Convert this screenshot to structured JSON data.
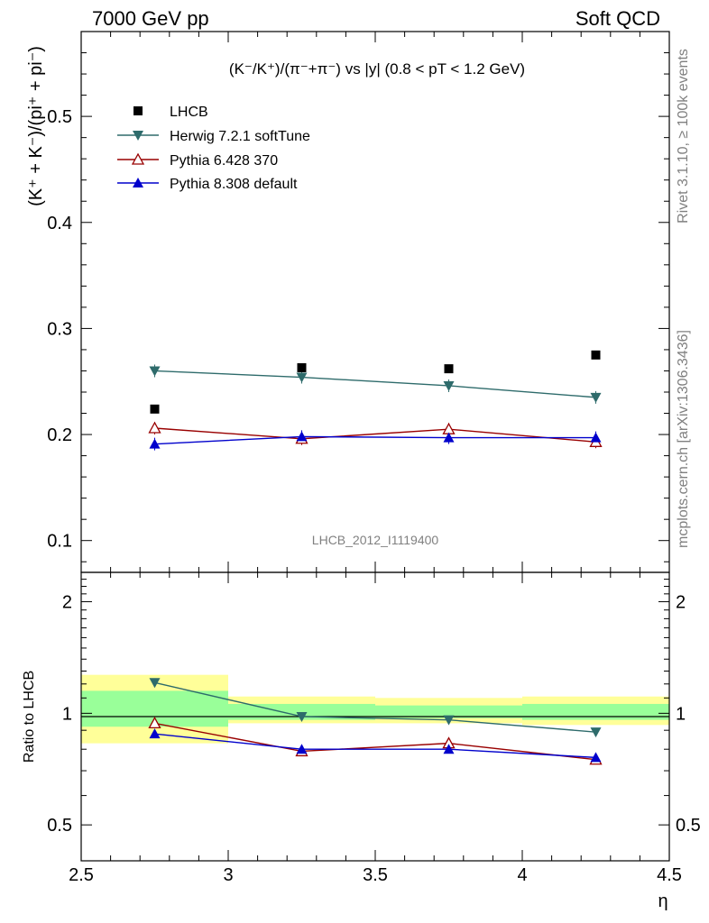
{
  "header": {
    "left": "7000 GeV pp",
    "right": "Soft QCD"
  },
  "side_labels": {
    "rivet": "Rivet 3.1.10, ≥ 100k events",
    "source": "mcplots.cern.ch [arXiv:1306.3436]"
  },
  "watermark": "LHCB_2012_I1119400",
  "colors": {
    "lhcb": "#000000",
    "herwig": "#2e6b6b",
    "pythia6": "#990000",
    "pythia8": "#0000cc",
    "band_inner": "#99ff99",
    "band_outer": "#ffff99"
  },
  "chart_data": [
    {
      "type": "scatter",
      "title": "(K⁻/K⁺)/(π⁻+π⁻) vs |y| (0.8 < pT < 1.2 GeV)",
      "ylabel": "(K⁺ + K⁻)/(pi⁺ + pi⁻)",
      "xlabel": "η",
      "xlim": [
        2.5,
        4.5
      ],
      "ylim": [
        0.07,
        0.58
      ],
      "y_ticks": [
        "0.1",
        "0.2",
        "0.3",
        "0.4",
        "0.5"
      ],
      "x": [
        2.75,
        3.25,
        3.75,
        4.25
      ],
      "series": [
        {
          "name": "LHCB",
          "marker": "square",
          "values": [
            0.224,
            0.263,
            0.262,
            0.275
          ]
        },
        {
          "name": "Herwig 7.2.1 softTune",
          "marker": "triangle-down",
          "values": [
            0.26,
            0.254,
            0.246,
            0.235
          ]
        },
        {
          "name": "Pythia 6.428 370",
          "marker": "triangle-open",
          "values": [
            0.206,
            0.196,
            0.205,
            0.193
          ]
        },
        {
          "name": "Pythia 8.308 default",
          "marker": "triangle-up",
          "values": [
            0.191,
            0.198,
            0.197,
            0.197
          ]
        }
      ]
    },
    {
      "type": "line",
      "ylabel": "Ratio to LHCB",
      "xlabel": "η",
      "xlim": [
        2.5,
        4.5
      ],
      "ylim": [
        0.4,
        2.4
      ],
      "x_ticks": [
        "2.5",
        "3",
        "3.5",
        "4",
        "4.5"
      ],
      "y_ticks": [
        "0.5",
        "1",
        "2"
      ],
      "x": [
        2.75,
        3.25,
        3.75,
        4.25
      ],
      "bins": [
        [
          2.5,
          3.0
        ],
        [
          3.0,
          3.5
        ],
        [
          3.5,
          4.0
        ],
        [
          4.0,
          4.5
        ]
      ],
      "band_inner": [
        [
          0.92,
          1.15
        ],
        [
          0.96,
          1.06
        ],
        [
          0.97,
          1.05
        ],
        [
          0.96,
          1.06
        ]
      ],
      "band_outer": [
        [
          0.83,
          1.27
        ],
        [
          0.94,
          1.11
        ],
        [
          0.94,
          1.1
        ],
        [
          0.93,
          1.11
        ]
      ],
      "series": [
        {
          "name": "Herwig 7.2.1 softTune",
          "values": [
            1.21,
            0.98,
            0.96,
            0.89
          ]
        },
        {
          "name": "Pythia 6.428 370",
          "values": [
            0.94,
            0.79,
            0.83,
            0.75
          ]
        },
        {
          "name": "Pythia 8.308 default",
          "values": [
            0.88,
            0.8,
            0.8,
            0.76
          ]
        }
      ]
    }
  ]
}
